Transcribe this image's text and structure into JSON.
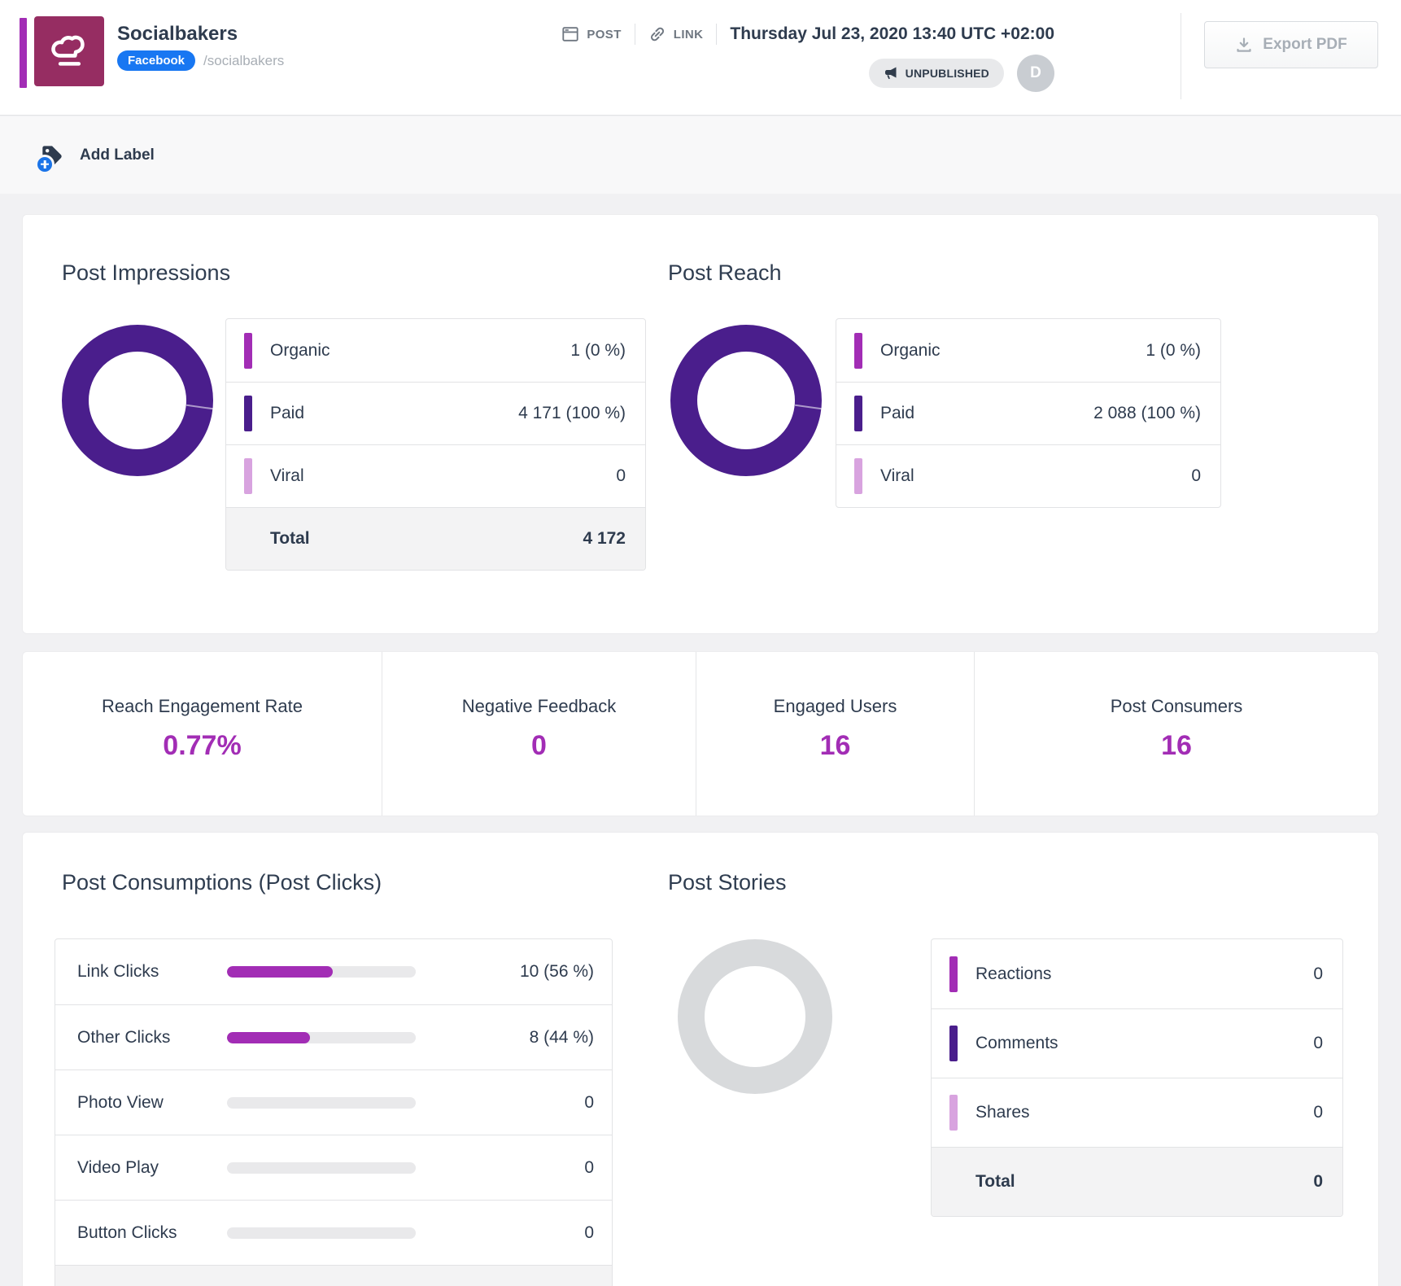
{
  "colors": {
    "accent": "#A22DB5",
    "deep_purple": "#4A1E8C",
    "light_purple": "#D8A3DF",
    "donut_gray": "#D8DADC",
    "facebook_blue": "#1877F2",
    "logo_berry": "#962D62"
  },
  "header": {
    "title": "Socialbakers",
    "network_badge": "Facebook",
    "handle": "/socialbakers",
    "post_label": "POST",
    "link_label": "LINK",
    "timestamp": "Thursday Jul 23, 2020 13:40 UTC +02:00",
    "status_badge": "UNPUBLISHED",
    "avatar_initial": "D",
    "export_label": "Export PDF"
  },
  "toolbar": {
    "add_label": "Add Label"
  },
  "post_impressions": {
    "title": "Post Impressions",
    "donut_color": "#4A1E8C",
    "rows": [
      {
        "label": "Organic",
        "value": "1 (0 %)",
        "color": "#A22DB5"
      },
      {
        "label": "Paid",
        "value": "4 171 (100 %)",
        "color": "#4A1E8C"
      },
      {
        "label": "Viral",
        "value": "0",
        "color": "#D8A3DF"
      }
    ],
    "total_label": "Total",
    "total_value": "4 172"
  },
  "post_reach": {
    "title": "Post Reach",
    "donut_color": "#4A1E8C",
    "rows": [
      {
        "label": "Organic",
        "value": "1 (0 %)",
        "color": "#A22DB5"
      },
      {
        "label": "Paid",
        "value": "2 088 (100 %)",
        "color": "#4A1E8C"
      },
      {
        "label": "Viral",
        "value": "0",
        "color": "#D8A3DF"
      }
    ]
  },
  "metrics": [
    {
      "label": "Reach Engagement Rate",
      "value": "0.77%"
    },
    {
      "label": "Negative Feedback",
      "value": "0"
    },
    {
      "label": "Engaged Users",
      "value": "16"
    },
    {
      "label": "Post Consumers",
      "value": "16"
    }
  ],
  "post_consumptions": {
    "title": "Post Consumptions (Post Clicks)",
    "bar_color": "#A22DB5",
    "rows": [
      {
        "label": "Link Clicks",
        "value": "10 (56 %)",
        "pct": 56
      },
      {
        "label": "Other Clicks",
        "value": "8 (44 %)",
        "pct": 44
      },
      {
        "label": "Photo View",
        "value": "0",
        "pct": 0
      },
      {
        "label": "Video Play",
        "value": "0",
        "pct": 0
      },
      {
        "label": "Button Clicks",
        "value": "0",
        "pct": 0
      }
    ]
  },
  "post_stories": {
    "title": "Post Stories",
    "donut_color": "#D8DADC",
    "rows": [
      {
        "label": "Reactions",
        "value": "0",
        "color": "#A22DB5"
      },
      {
        "label": "Comments",
        "value": "0",
        "color": "#4A1E8C"
      },
      {
        "label": "Shares",
        "value": "0",
        "color": "#D8A3DF"
      }
    ],
    "total_label": "Total",
    "total_value": "0"
  }
}
